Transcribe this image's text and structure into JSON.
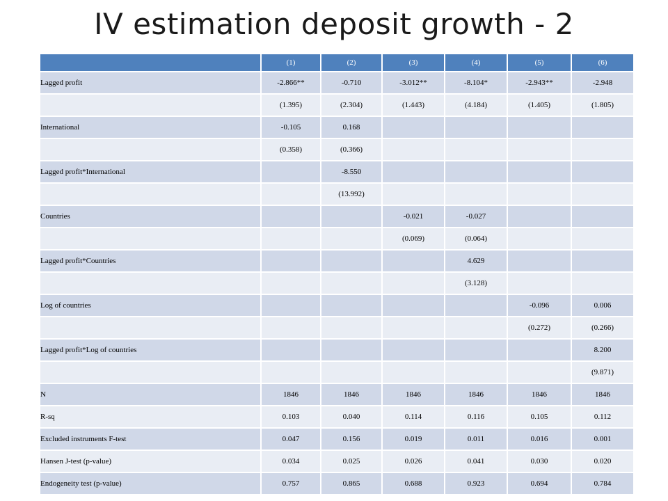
{
  "title": "IV estimation deposit growth - 2",
  "table": {
    "headers": [
      "",
      "(1)",
      "(2)",
      "(3)",
      "(4)",
      "(5)",
      "(6)"
    ],
    "rows": [
      {
        "label": "Lagged profit",
        "cells": [
          "-2.866**",
          "-0.710",
          "-3.012**",
          "-8.104*",
          "-2.943**",
          "-2.948"
        ]
      },
      {
        "label": "",
        "cells": [
          "(1.395)",
          "(2.304)",
          "(1.443)",
          "(4.184)",
          "(1.405)",
          "(1.805)"
        ]
      },
      {
        "label": "International",
        "cells": [
          "-0.105",
          "0.168",
          "",
          "",
          "",
          ""
        ]
      },
      {
        "label": "",
        "cells": [
          "(0.358)",
          "(0.366)",
          "",
          "",
          "",
          ""
        ]
      },
      {
        "label": "Lagged profit*International",
        "cells": [
          "",
          "-8.550",
          "",
          "",
          "",
          ""
        ]
      },
      {
        "label": "",
        "cells": [
          "",
          "(13.992)",
          "",
          "",
          "",
          ""
        ]
      },
      {
        "label": "Countries",
        "cells": [
          "",
          "",
          "-0.021",
          "-0.027",
          "",
          ""
        ]
      },
      {
        "label": "",
        "cells": [
          "",
          "",
          "(0.069)",
          "(0.064)",
          "",
          ""
        ]
      },
      {
        "label": "Lagged profit*Countries",
        "cells": [
          "",
          "",
          "",
          "4.629",
          "",
          ""
        ]
      },
      {
        "label": "",
        "cells": [
          "",
          "",
          "",
          "(3.128)",
          "",
          ""
        ]
      },
      {
        "label": "Log of countries",
        "cells": [
          "",
          "",
          "",
          "",
          "-0.096",
          "0.006"
        ]
      },
      {
        "label": "",
        "cells": [
          "",
          "",
          "",
          "",
          "(0.272)",
          "(0.266)"
        ]
      },
      {
        "label": "Lagged profit*Log of countries",
        "cells": [
          "",
          "",
          "",
          "",
          "",
          "8.200"
        ]
      },
      {
        "label": "",
        "cells": [
          "",
          "",
          "",
          "",
          "",
          "(9.871)"
        ]
      },
      {
        "label": "N",
        "cells": [
          "1846",
          "1846",
          "1846",
          "1846",
          "1846",
          "1846"
        ]
      },
      {
        "label": "R-sq",
        "cells": [
          "0.103",
          "0.040",
          "0.114",
          "0.116",
          "0.105",
          "0.112"
        ]
      },
      {
        "label": "Excluded  instruments F-test",
        "cells": [
          "0.047",
          "0.156",
          "0.019",
          "0.011",
          "0.016",
          "0.001"
        ]
      },
      {
        "label": "Hansen J-test (p-value)",
        "cells": [
          "0.034",
          "0.025",
          "0.026",
          "0.041",
          "0.030",
          "0.020"
        ]
      },
      {
        "label": "Endogeneity test (p-value)",
        "cells": [
          "0.757",
          "0.865",
          "0.688",
          "0.923",
          "0.694",
          "0.784"
        ]
      }
    ]
  }
}
